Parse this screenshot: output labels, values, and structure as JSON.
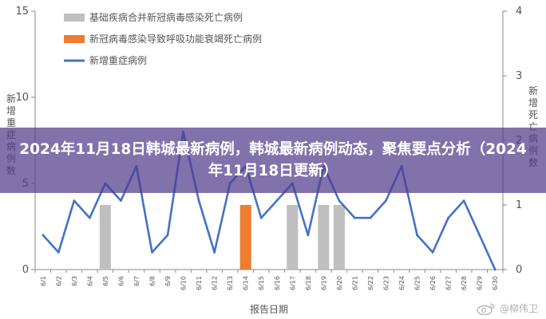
{
  "banner": {
    "title": "2024年11月18日韩城最新病例，韩城最新病例动态，聚焦要点分析（2024年11月18日更新）"
  },
  "watermark": {
    "text": "@柳伟卫"
  },
  "chart_data": {
    "type": "bar+line",
    "xlabel": "报告日期",
    "ylabel_left": "新增重症病例数",
    "ylabel_right": "新增死亡病例数",
    "categories": [
      "6/1",
      "6/2",
      "6/3",
      "6/4",
      "6/5",
      "6/6",
      "6/7",
      "6/8",
      "6/9",
      "6/10",
      "6/11",
      "6/12",
      "6/13",
      "6/14",
      "6/15",
      "6/16",
      "6/17",
      "6/18",
      "6/19",
      "6/20",
      "6/21",
      "6/22",
      "6/23",
      "6/24",
      "6/25",
      "6/26",
      "6/27",
      "6/28",
      "6/29",
      "6/30"
    ],
    "y_left": {
      "min": 0,
      "max": 15,
      "ticks": [
        0,
        5,
        10,
        15
      ]
    },
    "y_right": {
      "min": 0,
      "max": 4,
      "ticks": [
        0,
        1,
        2,
        3,
        4
      ]
    },
    "series": [
      {
        "name": "基础疾病合并新冠病毒感染死亡病例",
        "kind": "bar",
        "axis": "right",
        "color": "#BFBFBF",
        "values": [
          0,
          0,
          0,
          0,
          1,
          0,
          0,
          0,
          0,
          0,
          0,
          0,
          0,
          0,
          0,
          0,
          1,
          0,
          1,
          1,
          0,
          0,
          0,
          0,
          0,
          0,
          0,
          0,
          0,
          0
        ]
      },
      {
        "name": "新冠病毒感染导致呼吸功能衰竭死亡病例",
        "kind": "bar",
        "axis": "right",
        "color": "#ED7D31",
        "values": [
          0,
          0,
          0,
          0,
          0,
          0,
          0,
          0,
          0,
          0,
          0,
          0,
          0,
          1,
          0,
          0,
          0,
          0,
          0,
          0,
          0,
          0,
          0,
          0,
          0,
          0,
          0,
          0,
          0,
          0
        ]
      },
      {
        "name": "新增重症病例",
        "kind": "line",
        "axis": "left",
        "color": "#4472C4",
        "values": [
          2,
          1,
          4,
          3,
          5,
          4,
          6,
          1,
          2,
          8,
          4,
          1,
          5,
          6,
          3,
          4,
          5,
          2,
          6,
          4,
          3,
          3,
          4,
          6,
          2,
          1,
          3,
          4,
          2,
          0
        ]
      }
    ]
  }
}
